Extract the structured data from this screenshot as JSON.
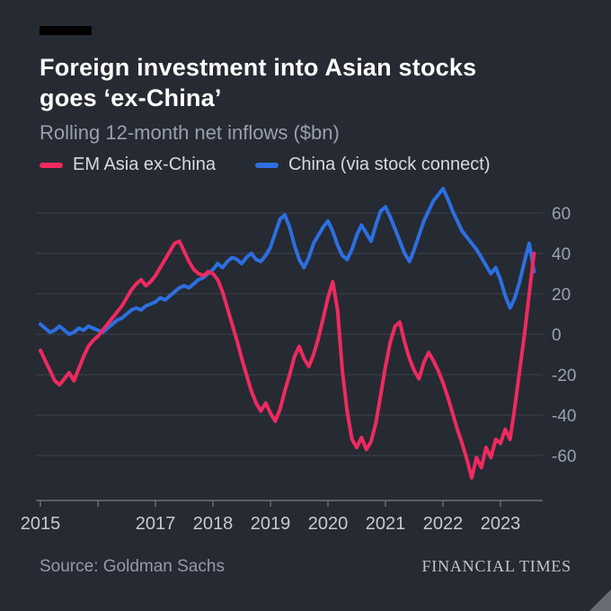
{
  "header": {
    "title_lines": [
      "Foreign investment into Asian stocks",
      "goes ‘ex-China’"
    ],
    "subtitle": "Rolling 12-month net inflows ($bn)"
  },
  "legend": [
    {
      "label": "EM Asia ex-China",
      "color": "#ee2a5f"
    },
    {
      "label": "China (via stock connect)",
      "color": "#2d6fe0"
    }
  ],
  "footer": {
    "source": "Source: Goldman Sachs",
    "brand": "FINANCIAL TIMES"
  },
  "colors": {
    "background": "#262a33",
    "grid": "#3b414d",
    "axis": "#6b7078",
    "ytick_label": "#9aa2ad",
    "xtick_label": "#c6cad1",
    "pink": "#ee2a5f",
    "blue": "#2d6fe0"
  },
  "chart_data": {
    "type": "line",
    "title": "Foreign investment into Asian stocks goes ‘ex-China’",
    "subtitle": "Rolling 12-month net inflows ($bn)",
    "xlabel": "",
    "ylabel": "$bn",
    "legend_position": "top",
    "grid": "horizontal",
    "ylim": [
      -80,
      75
    ],
    "xlim": [
      2015.0,
      2023.7
    ],
    "yticks": [
      60,
      40,
      20,
      0,
      -20,
      -40,
      -60
    ],
    "xticks": [
      2015,
      2016,
      2017,
      2018,
      2019,
      2020,
      2021,
      2022,
      2023
    ],
    "xtick_labels": [
      "2015",
      "",
      "2017",
      "2018",
      "2019",
      "2020",
      "2021",
      "2022",
      "2023"
    ],
    "x_start": 2015.0,
    "x_step": 0.0833333,
    "series": [
      {
        "name": "EM Asia ex-China",
        "color": "#ee2a5f",
        "values": [
          -8,
          -13,
          -18,
          -23,
          -25,
          -22,
          -19,
          -23,
          -17,
          -11,
          -6,
          -3,
          -1,
          2,
          5,
          8,
          11,
          14,
          18,
          22,
          25,
          27,
          24,
          26,
          29,
          33,
          37,
          41,
          45,
          46,
          41,
          36,
          32,
          30,
          29,
          31,
          30,
          27,
          21,
          13,
          5,
          -3,
          -12,
          -20,
          -28,
          -34,
          -38,
          -34,
          -39,
          -43,
          -37,
          -28,
          -20,
          -11,
          -6,
          -12,
          -16,
          -10,
          -2,
          8,
          18,
          26,
          12,
          -18,
          -38,
          -52,
          -56,
          -51,
          -57,
          -53,
          -44,
          -30,
          -16,
          -4,
          4,
          6,
          -4,
          -12,
          -18,
          -22,
          -14,
          -9,
          -13,
          -18,
          -24,
          -31,
          -39,
          -47,
          -54,
          -62,
          -71,
          -61,
          -66,
          -56,
          -61,
          -52,
          -54,
          -47,
          -52,
          -36,
          -18,
          0,
          20,
          40
        ]
      },
      {
        "name": "China (via stock connect)",
        "color": "#2d6fe0",
        "values": [
          5,
          3,
          1,
          2,
          4,
          2,
          0,
          1,
          3,
          2,
          4,
          3,
          2,
          1,
          3,
          5,
          7,
          8,
          10,
          12,
          13,
          12,
          14,
          15,
          16,
          18,
          17,
          19,
          21,
          23,
          24,
          23,
          25,
          27,
          28,
          30,
          32,
          35,
          33,
          36,
          38,
          37,
          35,
          38,
          40,
          37,
          36,
          39,
          43,
          50,
          57,
          59,
          53,
          44,
          37,
          33,
          38,
          45,
          49,
          53,
          56,
          51,
          44,
          39,
          37,
          42,
          49,
          54,
          50,
          46,
          54,
          61,
          63,
          58,
          52,
          46,
          40,
          36,
          42,
          49,
          56,
          61,
          66,
          69,
          72,
          67,
          61,
          56,
          51,
          48,
          45,
          42,
          38,
          34,
          30,
          33,
          27,
          19,
          13,
          18,
          26,
          36,
          45,
          31
        ]
      }
    ]
  }
}
